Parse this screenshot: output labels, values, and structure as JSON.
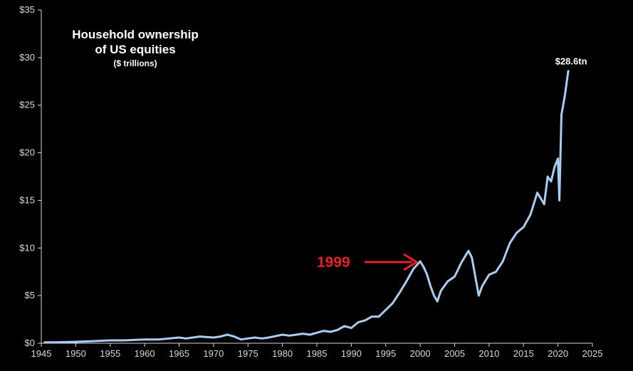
{
  "chart_data": {
    "type": "line",
    "title": "Household ownership of US equities",
    "title_lines": [
      "Household ownership",
      "of US equities"
    ],
    "subtitle": "($ trillions)",
    "xlabel": "",
    "ylabel": "",
    "xlim": [
      1945,
      2025
    ],
    "ylim": [
      0,
      35
    ],
    "x_ticks": [
      "1945",
      "1950",
      "1955",
      "1960",
      "1965",
      "1970",
      "1975",
      "1980",
      "1985",
      "1990",
      "1995",
      "2000",
      "2005",
      "2010",
      "2015",
      "2020",
      "2025"
    ],
    "y_ticks": [
      "$0",
      "$5",
      "$10",
      "$15",
      "$20",
      "$25",
      "$30",
      "$35"
    ],
    "grid": false,
    "legend": "none",
    "colors": {
      "background": "#000000",
      "line": "#a9cdf0",
      "axis": "#d9d9d9",
      "text": "#ffffff",
      "annotation": "#e8202a"
    },
    "series": [
      {
        "x": [
          1945.5,
          1947,
          1950,
          1952,
          1955,
          1957,
          1960,
          1962,
          1965,
          1966,
          1968,
          1970,
          1971,
          1972,
          1973,
          1974,
          1975,
          1976,
          1977,
          1978,
          1980,
          1981,
          1982,
          1983,
          1984,
          1985,
          1986,
          1987,
          1988,
          1989,
          1990,
          1991,
          1992,
          1993,
          1994,
          1995,
          1996,
          1997,
          1998,
          1999,
          2000,
          2000.5,
          2001,
          2001.5,
          2002,
          2002.5,
          2003,
          2004,
          2005,
          2006,
          2007,
          2007.5,
          2008,
          2008.5,
          2009,
          2010,
          2011,
          2012,
          2013,
          2014,
          2015,
          2016,
          2017,
          2018,
          2018.5,
          2019,
          2019.5,
          2020,
          2020.2,
          2020.5,
          2021,
          2021.5
        ],
        "y": [
          0.1,
          0.1,
          0.15,
          0.2,
          0.3,
          0.3,
          0.4,
          0.4,
          0.6,
          0.5,
          0.7,
          0.6,
          0.7,
          0.9,
          0.7,
          0.4,
          0.5,
          0.6,
          0.5,
          0.6,
          0.9,
          0.8,
          0.9,
          1.0,
          0.9,
          1.1,
          1.3,
          1.2,
          1.4,
          1.8,
          1.6,
          2.2,
          2.4,
          2.8,
          2.8,
          3.5,
          4.2,
          5.3,
          6.5,
          7.8,
          8.6,
          8.0,
          7.2,
          6.0,
          5.0,
          4.4,
          5.5,
          6.5,
          7.0,
          8.5,
          9.7,
          9.0,
          7.0,
          5.0,
          6.0,
          7.2,
          7.5,
          8.6,
          10.5,
          11.6,
          12.2,
          13.5,
          15.8,
          14.6,
          17.5,
          17.0,
          18.5,
          19.4,
          15.0,
          24.0,
          26.0,
          28.6
        ]
      }
    ],
    "annotations": [
      {
        "text": "$28.6tn",
        "x": 2021.5,
        "y": 28.6
      },
      {
        "text": "1999",
        "x": 1999.8,
        "y": 8.6
      }
    ]
  }
}
